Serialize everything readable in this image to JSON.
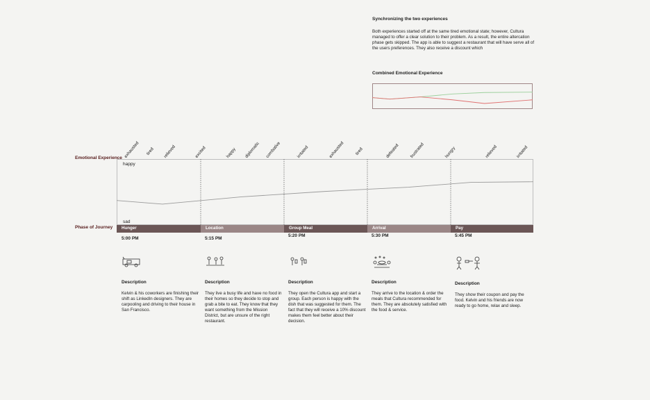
{
  "sync": {
    "title": "Synchronizing the two experiences",
    "body": "Both experiences started off at the same tired emotional state; however, Cultura managed to offer a clear solution to their problem. As a result, the entire altercation phase gets skipped. The app is able to suggest a restaurant that will have serve all of the users preferences. They also receive a discount which",
    "combined_title": "Combined Emotional Experience"
  },
  "labels": {
    "emotional_experience": "Emotional Experience",
    "phase_of_journey": "Phase of Journey"
  },
  "emotions": [
    "exhausted",
    "tired",
    "relieved",
    "excited",
    "happy",
    "diplomatic",
    "combative",
    "irritated",
    "exhausted",
    "tired",
    "defeated",
    "frustrated",
    "hungry",
    "relieved",
    "irritated"
  ],
  "chart_data": [
    {
      "type": "line",
      "title": "Emotional Experience",
      "y_axis_top_label": "happy",
      "y_axis_bottom_label": "sad",
      "ylim": [
        0,
        100
      ],
      "x": [
        0,
        0.11,
        0.3,
        0.5,
        0.7,
        0.85,
        1
      ],
      "series": [
        {
          "values": [
            36,
            30,
            42,
            51,
            58,
            66,
            67
          ]
        }
      ],
      "colors": [
        "#9a9a9a"
      ]
    },
    {
      "type": "line",
      "title": "Combined Emotional Experience",
      "ylim": [
        0,
        100
      ],
      "x": [
        0,
        0.11,
        0.3,
        0.5,
        0.7,
        1
      ],
      "series": [
        {
          "values": [
            40,
            30,
            45,
            65,
            75,
            78
          ]
        },
        {
          "values": [
            40,
            30,
            45,
            25,
            0,
            25
          ]
        }
      ],
      "colors": [
        "#9bcf9b",
        "#e07070"
      ]
    }
  ],
  "phases": [
    {
      "name": "Hunger",
      "time": "5:00 PM",
      "icon": "car-icon",
      "desc_title": "Description",
      "desc": "Kelvin & his coworkers are finishing their shift as LinkedIn designers. They are carpooling and driving to their house in San Francisco."
    },
    {
      "name": "Location",
      "time": "5:15 PM",
      "icon": "people-icon",
      "desc_title": "Description",
      "desc": "They live a busy life and have no food in their homes so they decide to stop and grab a bite to eat. They know that they want something from the Mission District, but are unsure of the right restaurant."
    },
    {
      "name": "Group Meal",
      "time": "5:20 PM",
      "icon": "group-phone-icon",
      "desc_title": "Description",
      "desc": "They open the Cultura app and start a group. Each person is happy with the dish that was suggested for them. The fact that they will receive a 10% discount makes them feel better about their decision."
    },
    {
      "name": "Arrival",
      "time": "5:30 PM",
      "icon": "dining-table-icon",
      "desc_title": "Description",
      "desc": "They arrive to the location & order the meals that Cultura recommended for them. They are absolutely satisfied with the food & service."
    },
    {
      "name": "Pay",
      "time": "5:45 PM",
      "icon": "payment-icon",
      "desc_title": "Description",
      "desc": "They show their coupon and pay the food. Kelvin and his friends are now ready to go home, relax and sleep."
    }
  ],
  "colors": {
    "phase_dark": "#6b5656",
    "phase_light": "#9a8686",
    "label": "#5a2020"
  }
}
